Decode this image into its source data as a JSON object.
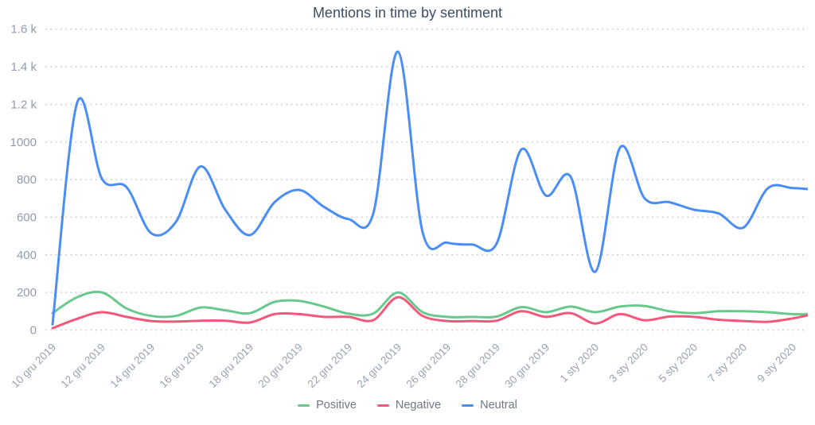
{
  "chart_data": {
    "type": "line",
    "title": "Mentions in time by sentiment",
    "xlabel": "",
    "ylabel": "",
    "ylim": [
      0,
      1600
    ],
    "grid": "horizontal-dotted",
    "legend_position": "bottom",
    "x": [
      "10 gru 2019",
      "11 gru 2019",
      "12 gru 2019",
      "13 gru 2019",
      "14 gru 2019",
      "15 gru 2019",
      "16 gru 2019",
      "17 gru 2019",
      "18 gru 2019",
      "19 gru 2019",
      "20 gru 2019",
      "21 gru 2019",
      "22 gru 2019",
      "23 gru 2019",
      "24 gru 2019",
      "25 gru 2019",
      "26 gru 2019",
      "27 gru 2019",
      "28 gru 2019",
      "29 gru 2019",
      "30 gru 2019",
      "31 gru 2019",
      "1 sty 2020",
      "2 sty 2020",
      "3 sty 2020",
      "4 sty 2020",
      "5 sty 2020",
      "6 sty 2020",
      "7 sty 2020",
      "8 sty 2020",
      "9 sty 2020",
      "10 sty 2020"
    ],
    "x_tick_labels": [
      "10 gru 2019",
      "12 gru 2019",
      "14 gru 2019",
      "16 gru 2019",
      "18 gru 2019",
      "20 gru 2019",
      "22 gru 2019",
      "24 gru 2019",
      "26 gru 2019",
      "28 gru 2019",
      "30 gru 2019",
      "1 sty 2020",
      "3 sty 2020",
      "5 sty 2020",
      "7 sty 2020",
      "9 sty 2020"
    ],
    "y_ticks": [
      "0",
      "200",
      "400",
      "600",
      "800",
      "1000",
      "1.2 k",
      "1.4 k",
      "1.6 k"
    ],
    "series": [
      {
        "name": "Positive",
        "color": "#69c98c",
        "values": [
          90,
          175,
          200,
          115,
          75,
          75,
          120,
          105,
          90,
          150,
          155,
          125,
          87,
          88,
          200,
          95,
          70,
          70,
          72,
          122,
          95,
          125,
          95,
          125,
          128,
          100,
          90,
          100,
          100,
          95,
          85,
          85
        ]
      },
      {
        "name": "Negative",
        "color": "#f2587a",
        "values": [
          10,
          60,
          95,
          70,
          48,
          45,
          50,
          50,
          40,
          85,
          85,
          70,
          70,
          53,
          175,
          75,
          48,
          48,
          50,
          100,
          70,
          90,
          35,
          85,
          52,
          72,
          70,
          55,
          48,
          44,
          62,
          90
        ]
      },
      {
        "name": "Neutral",
        "color": "#4a8df5",
        "values": [
          30,
          1210,
          805,
          760,
          515,
          575,
          870,
          640,
          505,
          680,
          745,
          655,
          590,
          620,
          1480,
          520,
          465,
          455,
          460,
          960,
          715,
          815,
          310,
          970,
          700,
          680,
          640,
          620,
          545,
          755,
          755,
          745
        ]
      }
    ]
  }
}
